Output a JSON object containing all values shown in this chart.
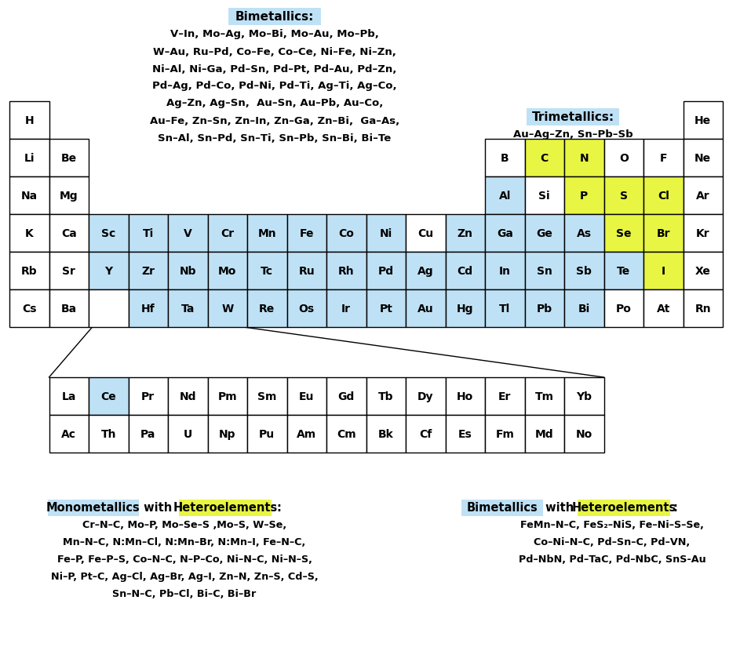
{
  "blue": "#BFE1F5",
  "yellow": "#E8F542",
  "white": "#FFFFFF",
  "elements": {
    "period1": [
      [
        "H",
        0,
        0,
        "w"
      ],
      [
        "He",
        17,
        0,
        "w"
      ]
    ],
    "period2": [
      [
        "Li",
        0,
        1,
        "w"
      ],
      [
        "Be",
        1,
        1,
        "w"
      ],
      [
        "B",
        12,
        1,
        "w"
      ],
      [
        "C",
        13,
        1,
        "y"
      ],
      [
        "N",
        14,
        1,
        "y"
      ],
      [
        "O",
        15,
        1,
        "w"
      ],
      [
        "F",
        16,
        1,
        "w"
      ],
      [
        "Ne",
        17,
        1,
        "w"
      ]
    ],
    "period3": [
      [
        "Na",
        0,
        2,
        "w"
      ],
      [
        "Mg",
        1,
        2,
        "w"
      ],
      [
        "Al",
        12,
        2,
        "b"
      ],
      [
        "Si",
        13,
        2,
        "w"
      ],
      [
        "P",
        14,
        2,
        "y"
      ],
      [
        "S",
        15,
        2,
        "y"
      ],
      [
        "Cl",
        16,
        2,
        "y"
      ],
      [
        "Ar",
        17,
        2,
        "w"
      ]
    ],
    "period4": [
      [
        "K",
        0,
        3,
        "w"
      ],
      [
        "Ca",
        1,
        3,
        "w"
      ],
      [
        "Sc",
        2,
        3,
        "b"
      ],
      [
        "Ti",
        3,
        3,
        "b"
      ],
      [
        "V",
        4,
        3,
        "b"
      ],
      [
        "Cr",
        5,
        3,
        "b"
      ],
      [
        "Mn",
        6,
        3,
        "b"
      ],
      [
        "Fe",
        7,
        3,
        "b"
      ],
      [
        "Co",
        8,
        3,
        "b"
      ],
      [
        "Ni",
        9,
        3,
        "b"
      ],
      [
        "Cu",
        10,
        3,
        "w"
      ],
      [
        "Zn",
        11,
        3,
        "b"
      ],
      [
        "Ga",
        12,
        3,
        "b"
      ],
      [
        "Ge",
        13,
        3,
        "b"
      ],
      [
        "As",
        14,
        3,
        "b"
      ],
      [
        "Se",
        15,
        3,
        "y"
      ],
      [
        "Br",
        16,
        3,
        "y"
      ],
      [
        "Kr",
        17,
        3,
        "w"
      ]
    ],
    "period5": [
      [
        "Rb",
        0,
        4,
        "w"
      ],
      [
        "Sr",
        1,
        4,
        "w"
      ],
      [
        "Y",
        2,
        4,
        "b"
      ],
      [
        "Zr",
        3,
        4,
        "b"
      ],
      [
        "Nb",
        4,
        4,
        "b"
      ],
      [
        "Mo",
        5,
        4,
        "b"
      ],
      [
        "Tc",
        6,
        4,
        "b"
      ],
      [
        "Ru",
        7,
        4,
        "b"
      ],
      [
        "Rh",
        8,
        4,
        "b"
      ],
      [
        "Pd",
        9,
        4,
        "b"
      ],
      [
        "Ag",
        10,
        4,
        "b"
      ],
      [
        "Cd",
        11,
        4,
        "b"
      ],
      [
        "In",
        12,
        4,
        "b"
      ],
      [
        "Sn",
        13,
        4,
        "b"
      ],
      [
        "Sb",
        14,
        4,
        "b"
      ],
      [
        "Te",
        15,
        4,
        "b"
      ],
      [
        "I",
        16,
        4,
        "y"
      ],
      [
        "Xe",
        17,
        4,
        "w"
      ]
    ],
    "period6": [
      [
        "Cs",
        0,
        5,
        "w"
      ],
      [
        "Ba",
        1,
        5,
        "w"
      ],
      [
        "",
        2,
        5,
        "w"
      ],
      [
        "Hf",
        3,
        5,
        "b"
      ],
      [
        "Ta",
        4,
        5,
        "b"
      ],
      [
        "W",
        5,
        5,
        "b"
      ],
      [
        "Re",
        6,
        5,
        "b"
      ],
      [
        "Os",
        7,
        5,
        "b"
      ],
      [
        "Ir",
        8,
        5,
        "b"
      ],
      [
        "Pt",
        9,
        5,
        "b"
      ],
      [
        "Au",
        10,
        5,
        "b"
      ],
      [
        "Hg",
        11,
        5,
        "b"
      ],
      [
        "Tl",
        12,
        5,
        "b"
      ],
      [
        "Pb",
        13,
        5,
        "b"
      ],
      [
        "Bi",
        14,
        5,
        "b"
      ],
      [
        "Po",
        15,
        5,
        "w"
      ],
      [
        "At",
        16,
        5,
        "w"
      ],
      [
        "Rn",
        17,
        5,
        "w"
      ]
    ],
    "lanthanides": [
      [
        "La",
        0,
        "w"
      ],
      [
        "Ce",
        1,
        "b"
      ],
      [
        "Pr",
        2,
        "w"
      ],
      [
        "Nd",
        3,
        "w"
      ],
      [
        "Pm",
        4,
        "w"
      ],
      [
        "Sm",
        5,
        "w"
      ],
      [
        "Eu",
        6,
        "w"
      ],
      [
        "Gd",
        7,
        "w"
      ],
      [
        "Tb",
        8,
        "w"
      ],
      [
        "Dy",
        9,
        "w"
      ],
      [
        "Ho",
        10,
        "w"
      ],
      [
        "Er",
        11,
        "w"
      ],
      [
        "Tm",
        12,
        "w"
      ],
      [
        "Yb",
        13,
        "w"
      ]
    ],
    "actinides": [
      [
        "Ac",
        0,
        "w"
      ],
      [
        "Th",
        1,
        "w"
      ],
      [
        "Pa",
        2,
        "w"
      ],
      [
        "U",
        3,
        "w"
      ],
      [
        "Np",
        4,
        "w"
      ],
      [
        "Pu",
        5,
        "w"
      ],
      [
        "Am",
        6,
        "w"
      ],
      [
        "Cm",
        7,
        "w"
      ],
      [
        "Bk",
        8,
        "w"
      ],
      [
        "Cf",
        9,
        "w"
      ],
      [
        "Es",
        10,
        "w"
      ],
      [
        "Fm",
        11,
        "w"
      ],
      [
        "Md",
        12,
        "w"
      ],
      [
        "No",
        13,
        "w"
      ]
    ]
  },
  "bimetallics_label": "Bimetallics:",
  "bimetallics_lines": [
    "V–In, Mo–Ag, Mo–Bi, Mo–Au, Mo–Pb,",
    "W–Au, Ru–Pd, Co–Fe, Co–Ce, Ni–Fe, Ni–Zn,",
    "Ni–Al, Ni–Ga, Pd–Sn, Pd–Pt, Pd–Au, Pd–Zn,",
    "Pd–Ag, Pd–Co, Pd–Ni, Pd–Ti, Ag–Ti, Ag–Co,",
    "Ag–Zn, Ag–Sn,  Au–Sn, Au–Pb, Au–Co,",
    "Au–Fe, Zn–Sn, Zn–In, Zn–Ga, Zn–Bi,  Ga–As,",
    "Sn–Al, Sn–Pd, Sn–Ti, Sn–Pb, Sn–Bi, Bi–Te"
  ],
  "trimetallics_label": "Trimetallics:",
  "trimetallics_line": "Au–Ag–Zn, Sn–Pb–Sb",
  "mono_lines": [
    "Cr–N–C, Mo–P, Mo–Se–S ,Mo–S, W–Se,",
    "Mn–N–C, N:Mn–Cl, N:Mn–Br, N:Mn–I, Fe–N–C,",
    "Fe–P, Fe–P–S, Co–N–C, N–P–Co, Ni–N–C, Ni–N–S,",
    "Ni–P, Pt–C, Ag–Cl, Ag–Br, Ag–I, Zn–N, Zn–S, Cd–S,",
    "Sn–N–C, Pb–Cl, Bi–C, Bi–Br"
  ],
  "bi_hetero_lines": [
    "FeMn–N–C, FeS₂–NiS, Fe–Ni–S–Se,",
    "Co–Ni–N–C, Pd–Sn–C, Pd–VN,",
    "Pd–NbN, Pd–TaC, Pd–NbC, SnS-Au"
  ]
}
